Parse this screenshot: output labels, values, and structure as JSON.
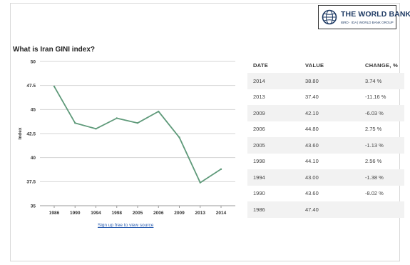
{
  "brand": {
    "name": "THE WORLD BANK",
    "subtitle": "IBRD · IDA | WORLD BANK GROUP",
    "logo_icon": "globe-icon",
    "color": "#1f3b64"
  },
  "source_link": "Sign up free to view source",
  "table": {
    "headers": [
      "DATE",
      "VALUE",
      "CHANGE, %"
    ],
    "rows": [
      {
        "date": "2014",
        "value": "38.80",
        "change": "3.74 %"
      },
      {
        "date": "2013",
        "value": "37.40",
        "change": "-11.16 %"
      },
      {
        "date": "2009",
        "value": "42.10",
        "change": "-6.03 %"
      },
      {
        "date": "2006",
        "value": "44.80",
        "change": "2.75 %"
      },
      {
        "date": "2005",
        "value": "43.60",
        "change": "-1.13 %"
      },
      {
        "date": "1998",
        "value": "44.10",
        "change": "2.56 %"
      },
      {
        "date": "1994",
        "value": "43.00",
        "change": "-1.38 %"
      },
      {
        "date": "1990",
        "value": "43.60",
        "change": "-8.02 %"
      },
      {
        "date": "1986",
        "value": "47.40",
        "change": ""
      }
    ]
  },
  "chart_data": {
    "type": "line",
    "title": "What is Iran GINI index?",
    "xlabel": "",
    "ylabel": "Index",
    "categories": [
      "1986",
      "1990",
      "1994",
      "1998",
      "2005",
      "2006",
      "2009",
      "2013",
      "2014"
    ],
    "values": [
      47.4,
      43.6,
      43.0,
      44.1,
      43.6,
      44.8,
      42.1,
      37.4,
      38.8
    ],
    "ylim": [
      35,
      50
    ],
    "yticks": [
      35,
      37.5,
      40,
      42.5,
      45,
      47.5,
      50
    ],
    "ytick_labels": [
      "35",
      "37.5",
      "40",
      "42.5",
      "45",
      "47.5",
      "50"
    ],
    "grid": true,
    "legend": "none",
    "line_color": "#5f9a7a"
  }
}
